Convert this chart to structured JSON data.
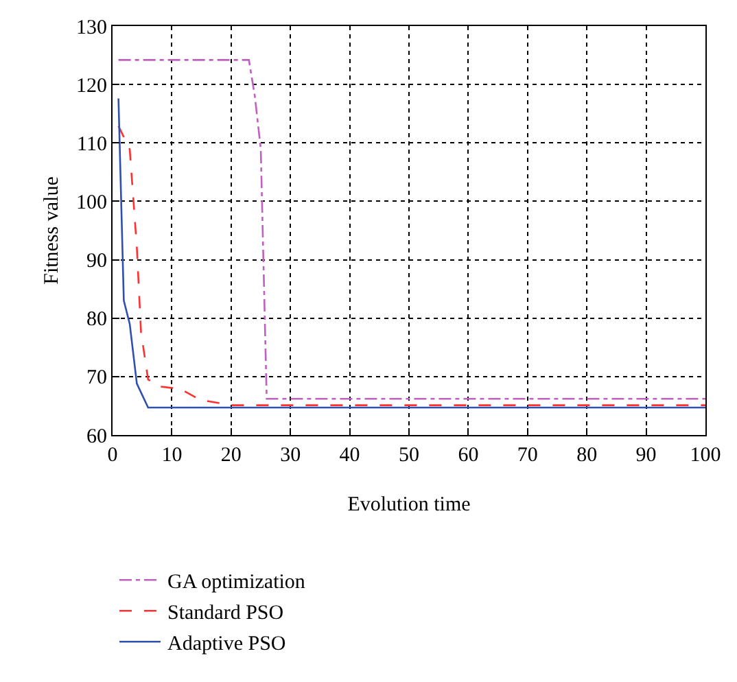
{
  "chart_data": {
    "type": "line",
    "xlabel": "Evolution time",
    "ylabel": "Fitness value",
    "xlim": [
      0,
      100
    ],
    "xticks": [
      0,
      10,
      20,
      30,
      40,
      50,
      60,
      70,
      80,
      90,
      100
    ],
    "ylim": [
      60,
      130
    ],
    "yticks": [
      60,
      70,
      80,
      90,
      100,
      110,
      120,
      130
    ],
    "grid": true,
    "legend": "bottom",
    "marker": "none",
    "series": [
      {
        "name": "GA optimization",
        "color": "#c060c0",
        "line_style": "dashdot",
        "x": [
          1,
          23,
          24,
          25,
          26,
          100
        ],
        "values": [
          124.2,
          124.2,
          118,
          109,
          66.2,
          66.2
        ]
      },
      {
        "name": "Standard PSO",
        "color": "#ff3030",
        "line_style": "dashed",
        "x": [
          1,
          2.9,
          4.1,
          4.8,
          6,
          7.9,
          11.4,
          14.8,
          20.2,
          100
        ],
        "values": [
          112.9,
          108.9,
          92.1,
          77.6,
          69.5,
          68.3,
          67.9,
          66,
          65.1,
          65.1
        ]
      },
      {
        "name": "Adaptive PSO",
        "color": "#3050b0",
        "line_style": "solid",
        "x": [
          1,
          1.9,
          2.9,
          4.1,
          6,
          100
        ],
        "values": [
          117.6,
          83,
          79,
          68.8,
          64.7,
          64.7
        ]
      }
    ]
  }
}
